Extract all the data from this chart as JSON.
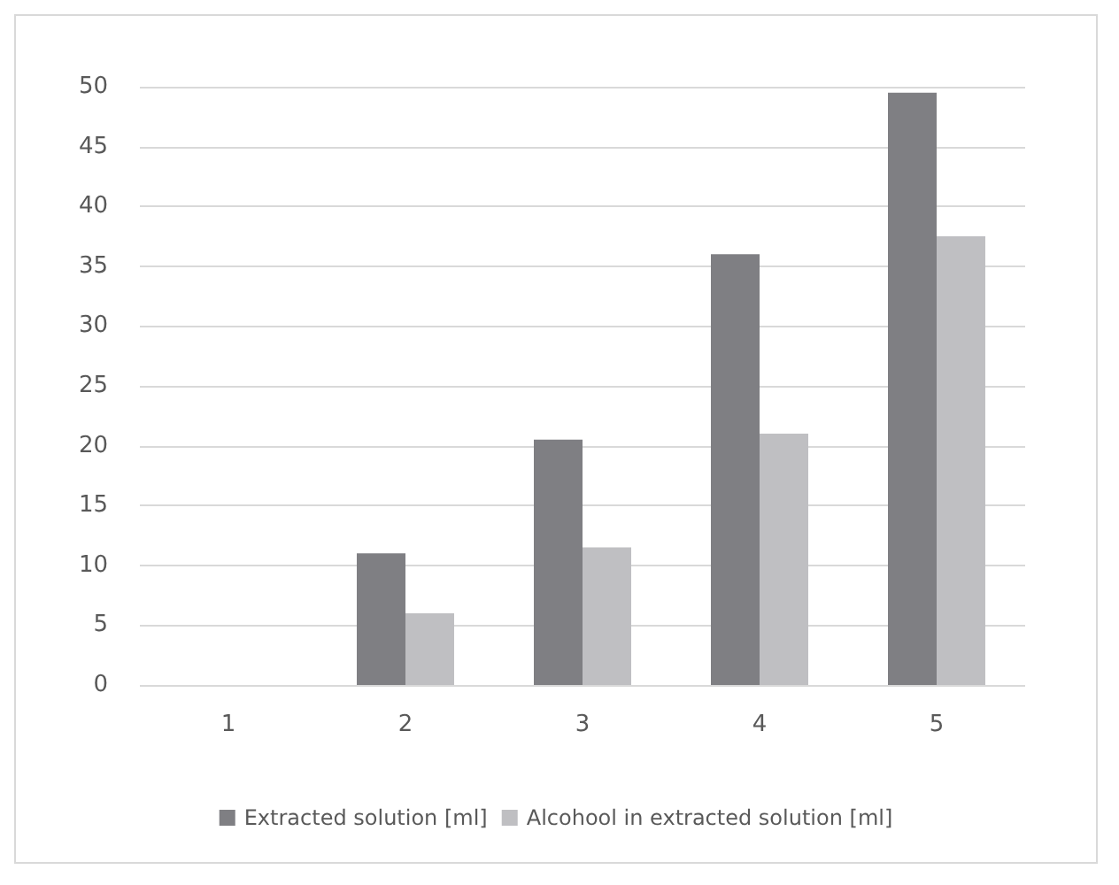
{
  "chart_data": {
    "type": "bar",
    "categories": [
      "1",
      "2",
      "3",
      "4",
      "5"
    ],
    "series": [
      {
        "name": "Extracted solution [ml]",
        "color": "#7f7f83",
        "values": [
          0,
          11,
          20.5,
          36,
          49.5
        ]
      },
      {
        "name": "Alcohool in extracted solution [ml]",
        "color": "#bfbfc2",
        "values": [
          0,
          6,
          11.5,
          21,
          37.5
        ]
      }
    ],
    "ylim": [
      0,
      50
    ],
    "yticks": [
      0,
      5,
      10,
      15,
      20,
      25,
      30,
      35,
      40,
      45,
      50
    ],
    "grid": "y",
    "legend": "bottom"
  }
}
